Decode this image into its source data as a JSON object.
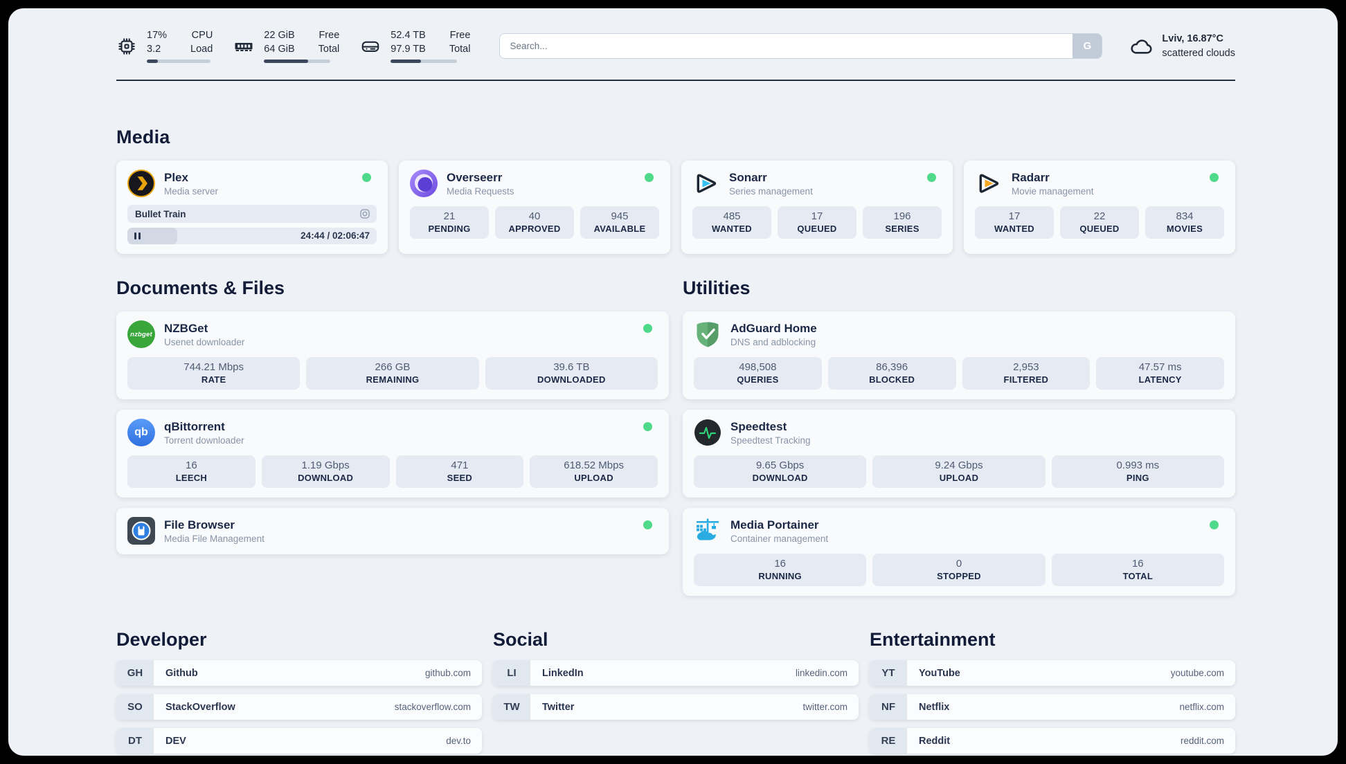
{
  "colors": {
    "status_online": "#4fd98b",
    "plex_accent": "#e8a30d",
    "sonarr_accent": "#37c3f1",
    "radarr_accent": "#f7a823",
    "nzbget_accent": "#38a63a",
    "qbittorrent_accent": "#2f6fe0",
    "adguard_accent": "#67b279",
    "speedtest_accent": "#2fd378",
    "portainer_accent": "#2aabe2",
    "progress_fill": "#3a475d"
  },
  "header": {
    "cpu": {
      "value_top": "17%",
      "value_bottom": "3.2",
      "label_top": "CPU",
      "label_bottom": "Load",
      "progress_pct": 17
    },
    "memory": {
      "value_top": "22 GiB",
      "value_bottom": "64 GiB",
      "label_top": "Free",
      "label_bottom": "Total",
      "progress_pct": 66
    },
    "storage": {
      "value_top": "52.4 TB",
      "value_bottom": "97.9 TB",
      "label_top": "Free",
      "label_bottom": "Total",
      "progress_pct": 46
    },
    "search": {
      "placeholder": "Search...",
      "engine_button": "G"
    },
    "weather": {
      "summary": "Lviv, 16.87°C",
      "condition": "scattered clouds"
    }
  },
  "sections": {
    "media": {
      "title": "Media",
      "apps": [
        {
          "name": "Plex",
          "description": "Media server",
          "online": true,
          "player": {
            "now_playing": "Bullet Train",
            "time_display": "24:44 / 02:06:47",
            "progress_pct": 20
          }
        },
        {
          "name": "Overseerr",
          "description": "Media Requests",
          "online": true,
          "stats": [
            {
              "value": "21",
              "label": "PENDING"
            },
            {
              "value": "40",
              "label": "APPROVED"
            },
            {
              "value": "945",
              "label": "AVAILABLE"
            }
          ]
        },
        {
          "name": "Sonarr",
          "description": "Series management",
          "online": true,
          "stats": [
            {
              "value": "485",
              "label": "WANTED"
            },
            {
              "value": "17",
              "label": "QUEUED"
            },
            {
              "value": "196",
              "label": "SERIES"
            }
          ]
        },
        {
          "name": "Radarr",
          "description": "Movie management",
          "online": true,
          "stats": [
            {
              "value": "17",
              "label": "WANTED"
            },
            {
              "value": "22",
              "label": "QUEUED"
            },
            {
              "value": "834",
              "label": "MOVIES"
            }
          ]
        }
      ]
    },
    "documents": {
      "title": "Documents & Files",
      "apps": [
        {
          "name": "NZBGet",
          "description": "Usenet downloader",
          "online": true,
          "icon_text": "nzbget",
          "stats": [
            {
              "value": "744.21 Mbps",
              "label": "RATE"
            },
            {
              "value": "266 GB",
              "label": "REMAINING"
            },
            {
              "value": "39.6 TB",
              "label": "DOWNLOADED"
            }
          ]
        },
        {
          "name": "qBittorrent",
          "description": "Torrent downloader",
          "online": true,
          "icon_text": "qb",
          "stats": [
            {
              "value": "16",
              "label": "LEECH"
            },
            {
              "value": "1.19 Gbps",
              "label": "DOWNLOAD"
            },
            {
              "value": "471",
              "label": "SEED"
            },
            {
              "value": "618.52 Mbps",
              "label": "UPLOAD"
            }
          ]
        },
        {
          "name": "File Browser",
          "description": "Media File Management",
          "online": true,
          "stats": []
        }
      ]
    },
    "utilities": {
      "title": "Utilities",
      "apps": [
        {
          "name": "AdGuard Home",
          "description": "DNS and adblocking",
          "online": false,
          "stats": [
            {
              "value": "498,508",
              "label": "QUERIES"
            },
            {
              "value": "86,396",
              "label": "BLOCKED"
            },
            {
              "value": "2,953",
              "label": "FILTERED"
            },
            {
              "value": "47.57 ms",
              "label": "LATENCY"
            }
          ]
        },
        {
          "name": "Speedtest",
          "description": "Speedtest Tracking",
          "online": false,
          "stats": [
            {
              "value": "9.65 Gbps",
              "label": "DOWNLOAD"
            },
            {
              "value": "9.24 Gbps",
              "label": "UPLOAD"
            },
            {
              "value": "0.993 ms",
              "label": "PING"
            }
          ]
        },
        {
          "name": "Media Portainer",
          "description": "Container management",
          "online": true,
          "stats": [
            {
              "value": "16",
              "label": "RUNNING"
            },
            {
              "value": "0",
              "label": "STOPPED"
            },
            {
              "value": "16",
              "label": "TOTAL"
            }
          ]
        }
      ]
    },
    "bookmarks": [
      {
        "title": "Developer",
        "links": [
          {
            "abbr": "GH",
            "name": "Github",
            "url": "github.com"
          },
          {
            "abbr": "SO",
            "name": "StackOverflow",
            "url": "stackoverflow.com"
          },
          {
            "abbr": "DT",
            "name": "DEV",
            "url": "dev.to"
          }
        ]
      },
      {
        "title": "Social",
        "links": [
          {
            "abbr": "LI",
            "name": "LinkedIn",
            "url": "linkedin.com"
          },
          {
            "abbr": "TW",
            "name": "Twitter",
            "url": "twitter.com"
          }
        ]
      },
      {
        "title": "Entertainment",
        "links": [
          {
            "abbr": "YT",
            "name": "YouTube",
            "url": "youtube.com"
          },
          {
            "abbr": "NF",
            "name": "Netflix",
            "url": "netflix.com"
          },
          {
            "abbr": "RE",
            "name": "Reddit",
            "url": "reddit.com"
          }
        ]
      }
    ]
  }
}
